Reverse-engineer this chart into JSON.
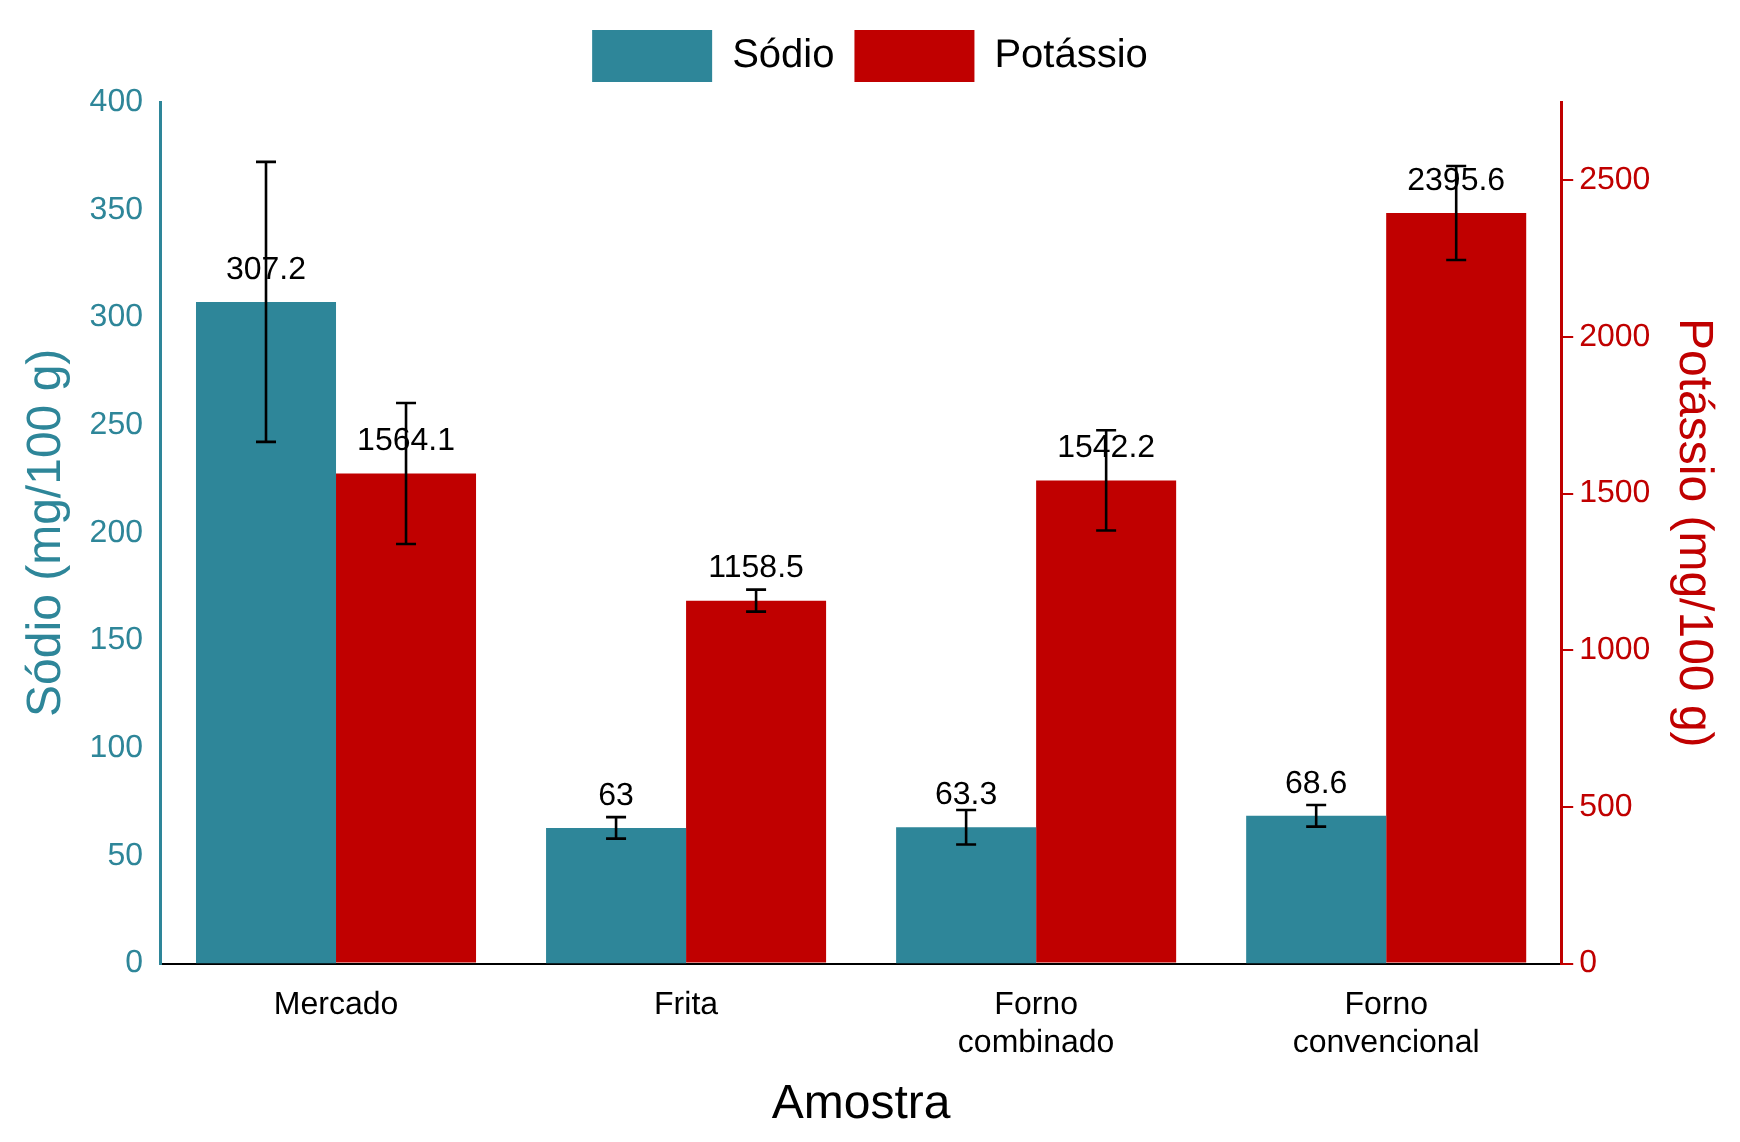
{
  "chart_data": {
    "type": "bar",
    "xlabel": "Amostra",
    "ylabel": "Sódio (mg/100 g)",
    "y2label": "Potássio (mg/100 g)",
    "categories": [
      "Mercado",
      "Frita",
      "Forno\ncombinado",
      "Forno\nconvencional"
    ],
    "series": [
      {
        "name": "Sódio",
        "color": "#2e8699",
        "values": [
          307.2,
          63,
          63.3,
          68.6
        ],
        "errors": [
          65,
          5,
          8,
          5
        ]
      },
      {
        "name": "Potássio",
        "color": "#c00000",
        "axis": "y2",
        "values": [
          1564.1,
          1158.5,
          1542.2,
          2395.6
        ],
        "errors": [
          225,
          35,
          160,
          150
        ]
      }
    ],
    "ylim": [
      0,
      400
    ],
    "yticks": [
      0,
      50,
      100,
      150,
      200,
      250,
      300,
      350,
      400
    ],
    "y2lim": [
      0,
      2750
    ],
    "y2ticks": [
      0,
      500,
      1000,
      1500,
      2000,
      2500
    ],
    "data_labels": true,
    "legend": "top",
    "grid": false
  }
}
